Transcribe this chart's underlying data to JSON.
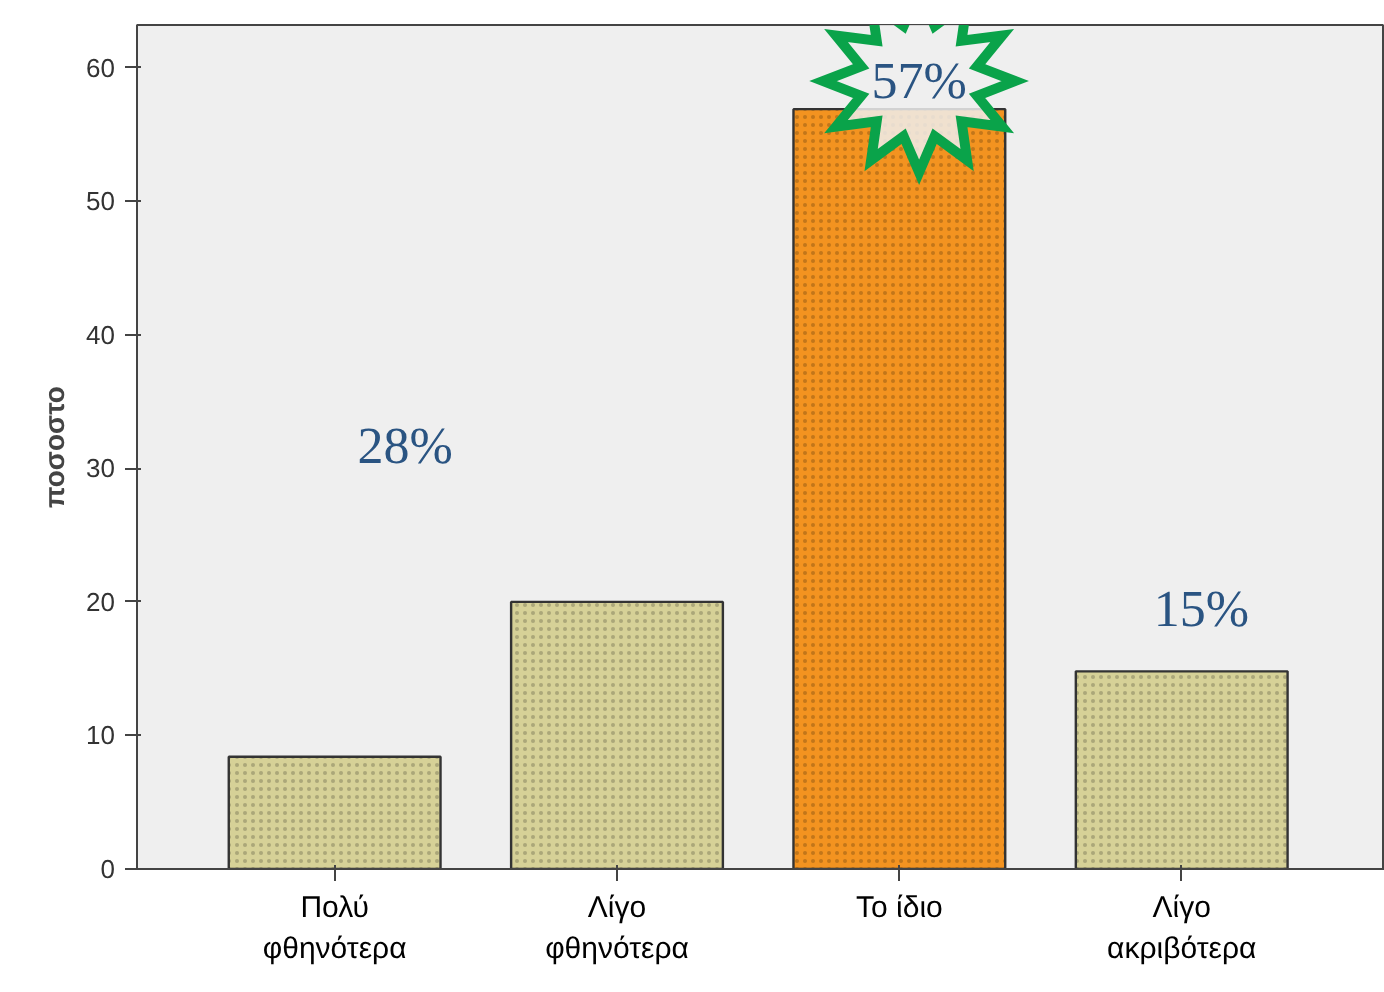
{
  "chart_data": {
    "type": "bar",
    "ylabel": "ποσοστο",
    "categories": [
      "Πολύ\nφθηνότερα",
      "Λίγο\nφθηνότερα",
      "Το ίδιο",
      "Λίγο\nακριβότερα"
    ],
    "values": [
      8.4,
      20,
      56.9,
      14.8
    ],
    "colors": [
      "#d6d197",
      "#d6d197",
      "#f39320",
      "#d6d197"
    ],
    "ylim": [
      0,
      63.2
    ],
    "yticks": [
      0,
      10,
      20,
      30,
      40,
      50,
      60
    ],
    "grid": false,
    "annotations": [
      "28%",
      "57%",
      "15%"
    ]
  }
}
